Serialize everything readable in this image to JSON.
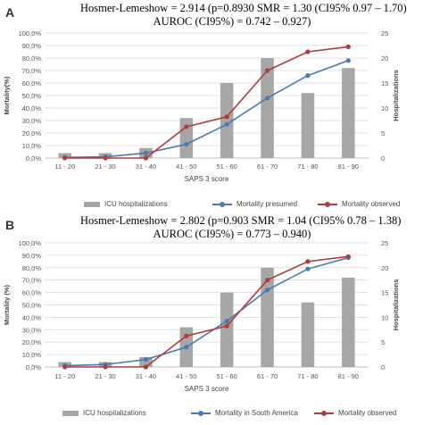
{
  "chart_data": [
    {
      "type": "bar+line",
      "panel_label": "A",
      "stats_line1": "Hosmer-Lemeshow = 2.914 (p=0.8930  SMR = 1.30 (CI95% 0.97 – 1.70)",
      "stats_line2": "AUROC (CI95%) = 0.742 – 0.927)",
      "xlabel": "SAPS 3 score",
      "ylabel_left": "Mortality(%)",
      "ylabel_right": "Hospitalizations",
      "categories": [
        "11 - 20",
        "21 - 30",
        "31 - 40",
        "41 - 50",
        "51 - 60",
        "61 - 70",
        "71 - 80",
        "81 - 90"
      ],
      "y_left_ticks": [
        "0,0%",
        "10,0%",
        "20,0%",
        "30,0%",
        "40,0%",
        "50,0%",
        "60,0%",
        "70,0%",
        "80,0%",
        "90,0%",
        "100,0%"
      ],
      "y_right_ticks": [
        "0",
        "5",
        "10",
        "15",
        "20",
        "25"
      ],
      "y_left_lim": [
        0,
        100
      ],
      "y_right_lim": [
        0,
        25
      ],
      "grid": true,
      "legend_position": "bottom",
      "bars": {
        "name": "ICU hospitalizations",
        "color": "#a6a6a6",
        "values": [
          1,
          1,
          2,
          8,
          15,
          20,
          13,
          18
        ]
      },
      "series": [
        {
          "name": "Mortality presumed",
          "color": "#4a7ab0",
          "values": [
            0.5,
            1.0,
            4.0,
            11.0,
            27.0,
            48.0,
            66.0,
            78.0
          ]
        },
        {
          "name": "Mortality observed",
          "color": "#b23a3a",
          "values": [
            0.0,
            0.0,
            0.0,
            25.0,
            33.0,
            70.0,
            85.0,
            89.0
          ]
        }
      ]
    },
    {
      "type": "bar+line",
      "panel_label": "B",
      "stats_line1": "Hosmer-Lemeshow = 2.802 (p=0.903  SMR = 1.04 (CI95% 0.78 – 1.38)",
      "stats_line2": "AUROC (CI95%) = 0.773 – 0.940)",
      "xlabel": "SAPS 3 score",
      "ylabel_left": "Mortality (%)",
      "ylabel_right": "Hospitalizations",
      "categories": [
        "11 - 20",
        "21 - 30",
        "31 - 40",
        "41 - 50",
        "51 - 60",
        "61 - 70",
        "71 - 80",
        "81 - 90"
      ],
      "y_left_ticks": [
        "0,0%",
        "10,0%",
        "20,0%",
        "30,0%",
        "40,0%",
        "50,0%",
        "60,0%",
        "70,0%",
        "80,0%",
        "90,0%",
        "100,0%"
      ],
      "y_right_ticks": [
        "0",
        "5",
        "10",
        "15",
        "20",
        "25"
      ],
      "y_left_lim": [
        0,
        100
      ],
      "y_right_lim": [
        0,
        25
      ],
      "grid": true,
      "legend_position": "bottom",
      "bars": {
        "name": "ICU hospitalizations",
        "color": "#a6a6a6",
        "values": [
          1,
          1,
          2,
          8,
          15,
          20,
          13,
          18
        ]
      },
      "series": [
        {
          "name": "Mortality in South America",
          "color": "#4a7ab0",
          "values": [
            1.0,
            2.0,
            6.0,
            16.0,
            37.0,
            62.0,
            79.0,
            88.0
          ]
        },
        {
          "name": "Mortality observed",
          "color": "#b23a3a",
          "values": [
            0.0,
            0.0,
            0.0,
            25.0,
            33.0,
            70.0,
            85.0,
            89.0
          ]
        }
      ]
    }
  ]
}
